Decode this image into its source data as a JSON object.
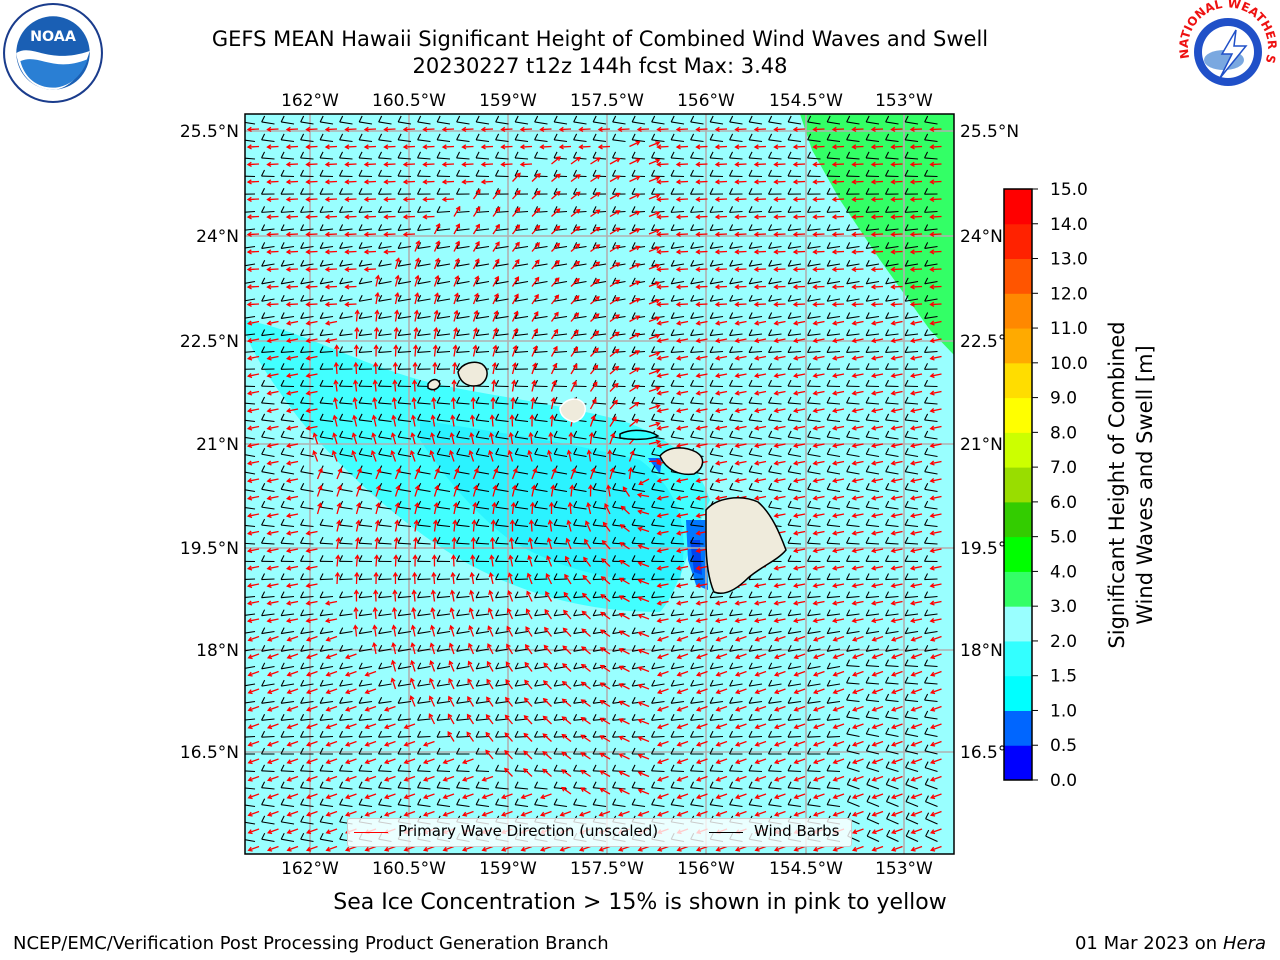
{
  "header": {
    "title_line1": "GEFS MEAN Hawaii Significant Height of Combined Wind Waves and Swell",
    "title_line2": "20230227 t12z 144h fcst   Max: 3.48"
  },
  "logos": {
    "left": "noaa-logo",
    "right": "nws-logo",
    "right_text": "NATIONAL WEATHER SERVICE"
  },
  "map": {
    "lon_ticks": [
      "162°W",
      "160.5°W",
      "159°W",
      "157.5°W",
      "156°W",
      "154.5°W",
      "153°W"
    ],
    "lat_ticks": [
      "25.5°N",
      "24°N",
      "22.5°N",
      "21°N",
      "19.5°N",
      "18°N",
      "16.5°N"
    ],
    "extent": {
      "lon_min": -163.0,
      "lon_max": -152.8,
      "lat_min": 15.0,
      "lat_max": 25.7
    },
    "colors": {
      "ocean_main": "#99ffff",
      "ocean_lee": "#33ffff",
      "ocean_shallow": "#0099ff",
      "ocean_deep_calm": "#0033ff",
      "high_waves": "#33ff66",
      "land": "#efebdc",
      "gridline": "#b0b0b0",
      "wave_arrow": "#ff0000",
      "wind_barb": "#000000"
    }
  },
  "colorbar": {
    "ticks": [
      "0.0",
      "0.5",
      "1.0",
      "1.5",
      "2.0",
      "3.0",
      "4.0",
      "5.0",
      "6.0",
      "7.0",
      "8.0",
      "9.0",
      "10.0",
      "11.0",
      "12.0",
      "13.0",
      "14.0",
      "15.0"
    ],
    "colors": [
      "#0000ff",
      "#0066ff",
      "#00ffff",
      "#33ffff",
      "#99ffff",
      "#33ff66",
      "#00ff00",
      "#33cc00",
      "#99dd00",
      "#ccff00",
      "#ffff00",
      "#ffdd00",
      "#ffaa00",
      "#ff8800",
      "#ff5500",
      "#ff2200",
      "#ff0000"
    ],
    "label_line1": "Significant Height of Combined",
    "label_line2": "Wind Waves and Swell [m]"
  },
  "legend": {
    "wave": "Primary Wave Direction (unscaled)",
    "barb": "Wind Barbs"
  },
  "notes": {
    "ice": "Sea Ice Concentration > 15% is shown in pink to yellow"
  },
  "footer": {
    "left": "NCEP/EMC/Verification Post Processing Product Generation Branch",
    "date": "01 Mar 2023 on",
    "host": "Hera"
  }
}
